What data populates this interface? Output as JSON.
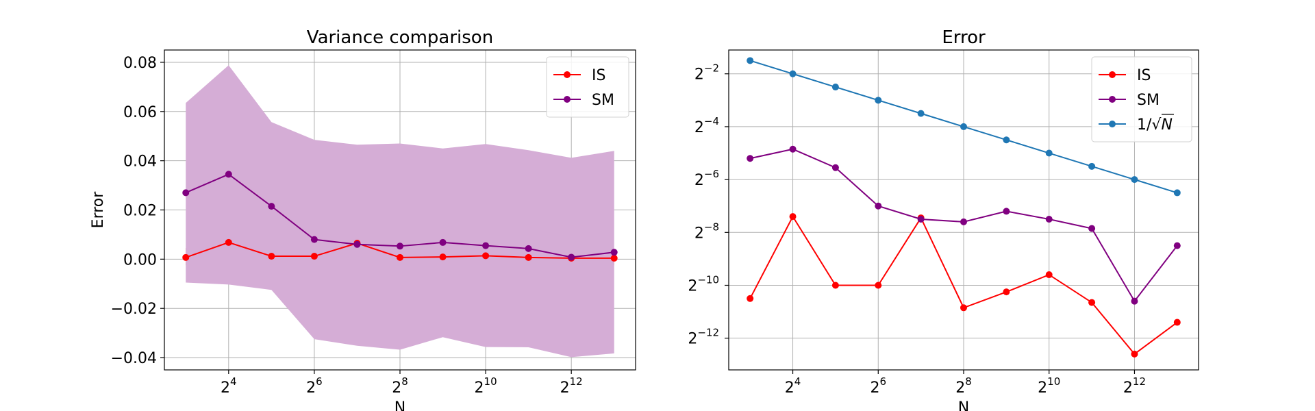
{
  "chart_data": [
    {
      "type": "line",
      "title": "Variance comparison",
      "xlabel": "N",
      "ylabel": "Error",
      "x_scale": "log2",
      "x_exponents": [
        3,
        4,
        5,
        6,
        7,
        8,
        9,
        10,
        11,
        12,
        13
      ],
      "x_tick_exponents": [
        4,
        6,
        8,
        10,
        12
      ],
      "xlim_exponent": [
        2.5,
        13.5
      ],
      "ylim": [
        -0.045,
        0.085
      ],
      "y_ticks": [
        -0.04,
        -0.02,
        0.0,
        0.02,
        0.04,
        0.06,
        0.08
      ],
      "y_tick_labels": [
        "−0.04",
        "−0.02",
        "0.00",
        "0.02",
        "0.04",
        "0.06",
        "0.08"
      ],
      "grid": true,
      "legend": {
        "position": "upper right",
        "entries": [
          "IS",
          "SM"
        ]
      },
      "series": [
        {
          "name": "IS",
          "color": "#ff0000",
          "values": [
            0.0007,
            0.0068,
            0.0012,
            0.0012,
            0.0065,
            0.0007,
            0.0009,
            0.0014,
            0.0007,
            0.0004,
            0.0004
          ],
          "band_lower": [
            -0.0025,
            0.0048,
            -0.0015,
            -0.0015,
            0.004,
            -0.0025,
            -0.002,
            -0.0015,
            -0.002,
            -0.0025,
            -0.0025
          ],
          "band_upper": [
            0.0045,
            0.0088,
            0.004,
            0.004,
            0.0093,
            0.0038,
            0.004,
            0.0045,
            0.0035,
            0.0033,
            0.0033
          ],
          "band_color": "#d9596a"
        },
        {
          "name": "SM",
          "color": "#800080",
          "values": [
            0.027,
            0.0345,
            0.0215,
            0.008,
            0.006,
            0.0053,
            0.0068,
            0.0055,
            0.0043,
            0.0008,
            0.0028
          ],
          "band_lower": [
            -0.0095,
            -0.0103,
            -0.0125,
            -0.0325,
            -0.0352,
            -0.0368,
            -0.0317,
            -0.0357,
            -0.0358,
            -0.0398,
            -0.0383
          ],
          "band_upper": [
            0.0635,
            0.0788,
            0.0557,
            0.0485,
            0.0465,
            0.047,
            0.045,
            0.0468,
            0.0443,
            0.0412,
            0.044
          ],
          "band_color": "#d5add6"
        }
      ]
    },
    {
      "type": "line",
      "title": "Error",
      "xlabel": "N",
      "ylabel": "",
      "x_scale": "log2",
      "y_scale": "log2",
      "x_exponents": [
        3,
        4,
        5,
        6,
        7,
        8,
        9,
        10,
        11,
        12,
        13
      ],
      "x_tick_exponents": [
        4,
        6,
        8,
        10,
        12
      ],
      "xlim_exponent": [
        2.5,
        13.5
      ],
      "ylim_exponent": [
        -13.2,
        -1.1
      ],
      "y_tick_exponents": [
        -12,
        -10,
        -8,
        -6,
        -4,
        -2
      ],
      "grid": true,
      "legend": {
        "position": "upper right",
        "entries": [
          "IS",
          "SM",
          "1/√N"
        ]
      },
      "series": [
        {
          "name": "IS",
          "color": "#ff0000",
          "y_exponents": [
            -10.5,
            -7.4,
            -10.0,
            -10.0,
            -7.45,
            -10.85,
            -10.25,
            -9.6,
            -10.65,
            -12.6,
            -11.4
          ]
        },
        {
          "name": "SM",
          "color": "#800080",
          "y_exponents": [
            -5.2,
            -4.85,
            -5.55,
            -7.0,
            -7.5,
            -7.6,
            -7.2,
            -7.5,
            -7.85,
            -10.6,
            -8.5
          ]
        },
        {
          "name": "1/√N",
          "color": "#1f77b4",
          "y_exponents": [
            -1.5,
            -2.0,
            -2.5,
            -3.0,
            -3.5,
            -4.0,
            -4.5,
            -5.0,
            -5.5,
            -6.0,
            -6.5
          ]
        }
      ]
    }
  ]
}
